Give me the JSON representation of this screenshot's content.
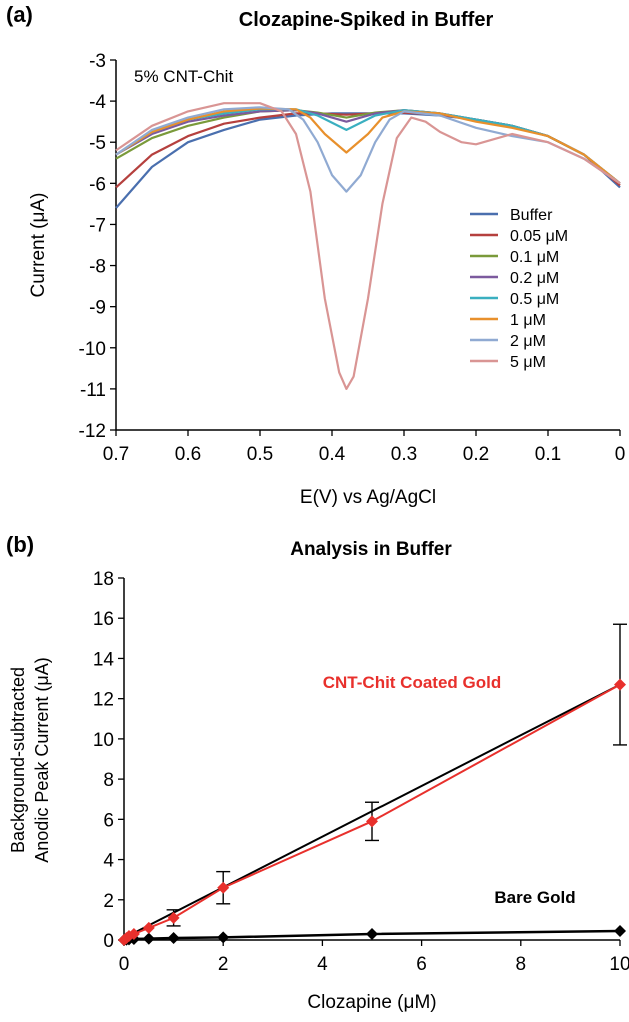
{
  "chart_data": [
    {
      "panel_label": "(a)",
      "type": "line",
      "title": "Clozapine-Spiked in Buffer",
      "annotation": "5% CNT-Chit",
      "xlabel": "E(V) vs Ag/AgCl",
      "ylabel": "Current (μA)",
      "xlim": [
        0.7,
        0
      ],
      "x_reversed": true,
      "ylim": [
        -12,
        -3
      ],
      "xticks": [
        "0.7",
        "0.6",
        "0.5",
        "0.4",
        "0.3",
        "0.2",
        "0.1",
        "0"
      ],
      "yticks": [
        "-3",
        "-4",
        "-5",
        "-6",
        "-7",
        "-8",
        "-9",
        "-10",
        "-11",
        "-12"
      ],
      "grid": false,
      "legend_position": "right",
      "series": [
        {
          "name": "Buffer",
          "color": "#4a6fae",
          "x": [
            0.7,
            0.65,
            0.6,
            0.55,
            0.5,
            0.45,
            0.4,
            0.35,
            0.3,
            0.25,
            0.2,
            0.15,
            0.1,
            0.05,
            0.0
          ],
          "y": [
            -6.6,
            -5.6,
            -5.0,
            -4.7,
            -4.45,
            -4.35,
            -4.3,
            -4.3,
            -4.3,
            -4.35,
            -4.45,
            -4.6,
            -4.85,
            -5.3,
            -6.1
          ]
        },
        {
          "name": "0.05 μM",
          "color": "#b5403e",
          "x": [
            0.7,
            0.65,
            0.6,
            0.55,
            0.5,
            0.45,
            0.42,
            0.38,
            0.34,
            0.3,
            0.25,
            0.2,
            0.15,
            0.1,
            0.05,
            0.0
          ],
          "y": [
            -6.1,
            -5.3,
            -4.85,
            -4.55,
            -4.4,
            -4.3,
            -4.3,
            -4.33,
            -4.3,
            -4.28,
            -4.33,
            -4.45,
            -4.6,
            -4.85,
            -5.3,
            -6.05
          ]
        },
        {
          "name": "0.1 μM",
          "color": "#7a9a3a",
          "x": [
            0.7,
            0.65,
            0.6,
            0.55,
            0.5,
            0.45,
            0.42,
            0.38,
            0.34,
            0.3,
            0.25,
            0.2,
            0.15,
            0.1,
            0.05,
            0.0
          ],
          "y": [
            -5.4,
            -4.9,
            -4.6,
            -4.4,
            -4.25,
            -4.22,
            -4.28,
            -4.4,
            -4.28,
            -4.22,
            -4.3,
            -4.45,
            -4.6,
            -4.85,
            -5.3,
            -6.0
          ]
        },
        {
          "name": "0.2 μM",
          "color": "#7c5a9e",
          "x": [
            0.7,
            0.65,
            0.6,
            0.55,
            0.5,
            0.45,
            0.42,
            0.38,
            0.34,
            0.3,
            0.25,
            0.2,
            0.15,
            0.1,
            0.05,
            0.0
          ],
          "y": [
            -5.3,
            -4.8,
            -4.5,
            -4.35,
            -4.25,
            -4.22,
            -4.3,
            -4.5,
            -4.3,
            -4.22,
            -4.3,
            -4.45,
            -4.6,
            -4.85,
            -5.3,
            -6.0
          ]
        },
        {
          "name": "0.5 μM",
          "color": "#3aafc0",
          "x": [
            0.7,
            0.65,
            0.6,
            0.55,
            0.5,
            0.45,
            0.42,
            0.38,
            0.34,
            0.3,
            0.25,
            0.2,
            0.15,
            0.1,
            0.05,
            0.0
          ],
          "y": [
            -5.3,
            -4.75,
            -4.45,
            -4.3,
            -4.2,
            -4.2,
            -4.35,
            -4.7,
            -4.35,
            -4.22,
            -4.3,
            -4.45,
            -4.6,
            -4.85,
            -5.3,
            -6.0
          ]
        },
        {
          "name": "1 μM",
          "color": "#e8902c",
          "x": [
            0.7,
            0.65,
            0.6,
            0.55,
            0.5,
            0.45,
            0.43,
            0.41,
            0.38,
            0.35,
            0.33,
            0.3,
            0.25,
            0.2,
            0.15,
            0.1,
            0.05,
            0.0
          ],
          "y": [
            -5.3,
            -4.75,
            -4.45,
            -4.25,
            -4.18,
            -4.2,
            -4.4,
            -4.8,
            -5.25,
            -4.8,
            -4.4,
            -4.25,
            -4.3,
            -4.5,
            -4.65,
            -4.85,
            -5.3,
            -6.0
          ]
        },
        {
          "name": "2 μM",
          "color": "#90aad2",
          "x": [
            0.7,
            0.65,
            0.6,
            0.55,
            0.5,
            0.46,
            0.44,
            0.42,
            0.4,
            0.38,
            0.36,
            0.34,
            0.32,
            0.3,
            0.25,
            0.2,
            0.15,
            0.1,
            0.05,
            0.0
          ],
          "y": [
            -5.3,
            -4.7,
            -4.4,
            -4.2,
            -4.15,
            -4.2,
            -4.45,
            -5.0,
            -5.8,
            -6.2,
            -5.8,
            -5.0,
            -4.45,
            -4.25,
            -4.35,
            -4.65,
            -4.85,
            -5.0,
            -5.4,
            -6.0
          ]
        },
        {
          "name": "5 μM",
          "color": "#d99594",
          "x": [
            0.7,
            0.65,
            0.6,
            0.55,
            0.5,
            0.47,
            0.45,
            0.43,
            0.41,
            0.39,
            0.38,
            0.37,
            0.35,
            0.33,
            0.31,
            0.29,
            0.27,
            0.25,
            0.22,
            0.2,
            0.18,
            0.15,
            0.1,
            0.05,
            0.0
          ],
          "y": [
            -5.2,
            -4.6,
            -4.25,
            -4.05,
            -4.05,
            -4.25,
            -4.8,
            -6.2,
            -8.8,
            -10.6,
            -11.0,
            -10.7,
            -8.8,
            -6.5,
            -4.9,
            -4.4,
            -4.5,
            -4.75,
            -5.0,
            -5.05,
            -4.95,
            -4.8,
            -5.0,
            -5.4,
            -6.0
          ]
        }
      ]
    },
    {
      "panel_label": "(b)",
      "type": "scatter",
      "title": "Analysis in Buffer",
      "xlabel": "Clozapine (μM)",
      "ylabel_line1": "Background-subtracted",
      "ylabel_line2": "Anodic Peak Current (μA)",
      "xlim": [
        0,
        10
      ],
      "ylim": [
        0,
        18
      ],
      "xticks": [
        "0",
        "2",
        "4",
        "6",
        "8",
        "10"
      ],
      "yticks": [
        "0",
        "2",
        "4",
        "6",
        "8",
        "10",
        "12",
        "14",
        "16",
        "18"
      ],
      "grid": false,
      "series": [
        {
          "label": "CNT-Chit Coated Gold",
          "color": "#e8302c",
          "x": [
            0,
            0.05,
            0.1,
            0.2,
            0.5,
            1,
            2,
            5,
            10
          ],
          "y": [
            0,
            0.1,
            0.2,
            0.3,
            0.6,
            1.1,
            2.6,
            5.9,
            12.7
          ],
          "err": [
            0,
            0,
            0,
            0,
            0,
            0.4,
            0.8,
            0.95,
            3.0
          ],
          "fit": [
            0,
            0.1,
            10,
            12.7
          ]
        },
        {
          "label": "Bare Gold",
          "color": "#000000",
          "x": [
            0,
            0.05,
            0.1,
            0.2,
            0.5,
            1,
            2,
            5,
            10
          ],
          "y": [
            0,
            0.02,
            0.03,
            0.05,
            0.07,
            0.1,
            0.13,
            0.3,
            0.45
          ],
          "err": [
            0,
            0,
            0,
            0,
            0,
            0,
            0,
            0,
            0
          ]
        }
      ]
    }
  ]
}
